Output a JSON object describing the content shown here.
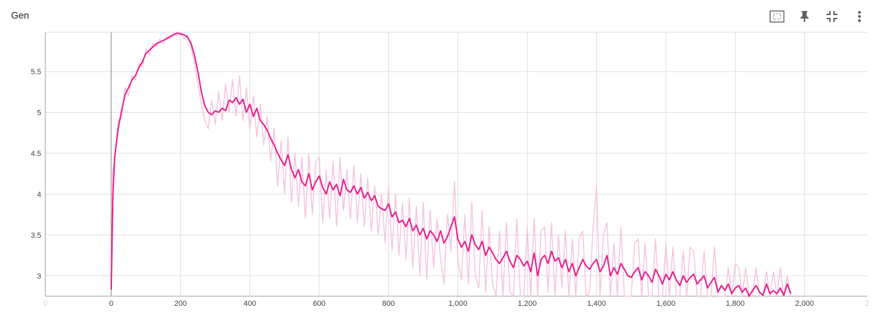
{
  "header": {
    "title": "Gen",
    "icons": [
      "fit-domain-icon",
      "pin-icon",
      "collapse-icon",
      "more-vert-icon"
    ]
  },
  "colors": {
    "smoothed": "#e91e8c",
    "raw": "#f5c2de",
    "grid": "#dedede",
    "axis": "#9e9e9e"
  },
  "chart_data": {
    "type": "line",
    "title": "Gen",
    "xlabel": "",
    "ylabel": "",
    "xlim": [
      -190,
      2180
    ],
    "ylim": [
      2.75,
      5.98
    ],
    "grid": true,
    "x_ticks": [
      "0",
      "0",
      "200",
      "400",
      "600",
      "800",
      "1,000",
      "1,200",
      "1,400",
      "1,600",
      "1,800",
      "2,000",
      "2"
    ],
    "x_tick_values": [
      -190,
      0,
      200,
      400,
      600,
      800,
      1000,
      1200,
      1400,
      1600,
      1800,
      2000,
      2180
    ],
    "y_ticks": [
      "3",
      "3.5",
      "4",
      "4.5",
      "5",
      "5.5"
    ],
    "y_tick_values": [
      3,
      3.5,
      4,
      4.5,
      5,
      5.5
    ],
    "series": [
      {
        "role": "smoothed",
        "x": [
          0,
          5,
          10,
          20,
          30,
          40,
          50,
          60,
          70,
          80,
          90,
          100,
          110,
          120,
          130,
          140,
          150,
          160,
          170,
          180,
          190,
          200,
          210,
          220,
          230,
          240,
          250,
          260,
          270,
          280,
          290,
          300,
          310,
          320,
          330,
          340,
          350,
          360,
          370,
          380,
          390,
          400,
          410,
          420,
          430,
          440,
          450,
          460,
          470,
          480,
          490,
          500,
          510,
          520,
          530,
          540,
          550,
          560,
          570,
          580,
          590,
          600,
          610,
          620,
          630,
          640,
          650,
          660,
          670,
          680,
          690,
          700,
          710,
          720,
          730,
          740,
          750,
          760,
          770,
          780,
          790,
          800,
          810,
          820,
          830,
          840,
          850,
          860,
          870,
          880,
          890,
          900,
          910,
          920,
          930,
          940,
          950,
          960,
          970,
          980,
          990,
          1000,
          1010,
          1020,
          1030,
          1040,
          1050,
          1060,
          1070,
          1080,
          1090,
          1100,
          1110,
          1120,
          1130,
          1140,
          1150,
          1160,
          1170,
          1180,
          1190,
          1200,
          1210,
          1220,
          1230,
          1240,
          1250,
          1260,
          1270,
          1280,
          1290,
          1300,
          1310,
          1320,
          1330,
          1340,
          1350,
          1360,
          1370,
          1380,
          1390,
          1400,
          1410,
          1420,
          1430,
          1440,
          1450,
          1460,
          1470,
          1480,
          1490,
          1500,
          1510,
          1520,
          1530,
          1540,
          1550,
          1560,
          1570,
          1580,
          1590,
          1600,
          1610,
          1620,
          1630,
          1640,
          1650,
          1660,
          1670,
          1680,
          1690,
          1700,
          1710,
          1720,
          1730,
          1740,
          1750,
          1760,
          1770,
          1780,
          1790,
          1800,
          1810,
          1820,
          1830,
          1840,
          1850,
          1860,
          1870,
          1880,
          1890,
          1900,
          1910,
          1920,
          1930,
          1940,
          1950,
          1960
        ],
        "y": [
          2.83,
          4.0,
          4.45,
          4.8,
          5.02,
          5.22,
          5.3,
          5.4,
          5.45,
          5.55,
          5.62,
          5.72,
          5.76,
          5.8,
          5.84,
          5.86,
          5.88,
          5.9,
          5.93,
          5.95,
          5.97,
          5.96,
          5.95,
          5.92,
          5.85,
          5.7,
          5.5,
          5.25,
          5.08,
          5.0,
          4.97,
          5.02,
          5.0,
          5.05,
          5.02,
          5.15,
          5.12,
          5.18,
          5.1,
          5.16,
          5.0,
          5.1,
          4.95,
          5.05,
          4.9,
          4.85,
          4.78,
          4.68,
          4.6,
          4.5,
          4.42,
          4.35,
          4.48,
          4.3,
          4.2,
          4.3,
          4.15,
          4.1,
          4.25,
          4.05,
          4.15,
          4.22,
          4.08,
          4.0,
          4.15,
          4.05,
          4.12,
          3.98,
          4.18,
          4.05,
          4.02,
          4.1,
          4.0,
          4.08,
          3.95,
          4.02,
          3.92,
          3.98,
          3.85,
          3.82,
          3.8,
          3.88,
          3.72,
          3.78,
          3.65,
          3.68,
          3.6,
          3.7,
          3.55,
          3.62,
          3.5,
          3.58,
          3.45,
          3.55,
          3.5,
          3.42,
          3.55,
          3.4,
          3.48,
          3.6,
          3.72,
          3.45,
          3.35,
          3.42,
          3.3,
          3.5,
          3.38,
          3.32,
          3.42,
          3.25,
          3.35,
          3.28,
          3.2,
          3.15,
          3.22,
          3.3,
          3.18,
          3.1,
          3.25,
          3.2,
          3.12,
          3.18,
          3.05,
          3.28,
          3.0,
          3.2,
          3.25,
          3.15,
          3.3,
          3.18,
          3.22,
          3.1,
          3.2,
          3.05,
          3.15,
          3.0,
          3.1,
          3.2,
          3.12,
          3.08,
          3.15,
          3.2,
          3.05,
          3.12,
          3.25,
          3.0,
          3.1,
          3.02,
          3.15,
          3.08,
          3.0,
          2.98,
          3.05,
          3.1,
          2.95,
          3.05,
          3.0,
          2.92,
          3.08,
          3.0,
          2.9,
          3.02,
          2.95,
          3.05,
          2.95,
          2.88,
          3.0,
          2.92,
          2.98,
          3.02,
          2.9,
          2.95,
          3.0,
          2.85,
          2.92,
          2.98,
          2.8,
          2.88,
          2.82,
          2.9,
          2.78,
          2.85,
          2.88,
          2.8,
          2.85,
          2.75,
          2.82,
          2.88,
          2.8,
          2.76,
          2.9,
          2.78,
          2.82,
          2.78,
          2.85,
          2.76,
          2.9,
          2.78
        ]
      },
      {
        "role": "raw",
        "x": [
          0,
          5,
          10,
          20,
          30,
          40,
          50,
          60,
          70,
          80,
          90,
          100,
          110,
          120,
          130,
          140,
          150,
          160,
          170,
          180,
          190,
          200,
          210,
          220,
          230,
          240,
          250,
          260,
          270,
          280,
          290,
          300,
          310,
          320,
          330,
          340,
          350,
          360,
          370,
          380,
          390,
          400,
          410,
          420,
          430,
          440,
          450,
          460,
          470,
          480,
          490,
          500,
          510,
          520,
          530,
          540,
          550,
          560,
          570,
          580,
          590,
          600,
          610,
          620,
          630,
          640,
          650,
          660,
          670,
          680,
          690,
          700,
          710,
          720,
          730,
          740,
          750,
          760,
          770,
          780,
          790,
          800,
          810,
          820,
          830,
          840,
          850,
          860,
          870,
          880,
          890,
          900,
          910,
          920,
          930,
          940,
          950,
          960,
          970,
          980,
          990,
          1000,
          1010,
          1020,
          1030,
          1040,
          1050,
          1060,
          1070,
          1080,
          1090,
          1100,
          1110,
          1120,
          1130,
          1140,
          1150,
          1160,
          1170,
          1180,
          1190,
          1200,
          1210,
          1220,
          1230,
          1240,
          1250,
          1260,
          1270,
          1280,
          1290,
          1300,
          1310,
          1320,
          1330,
          1340,
          1350,
          1360,
          1370,
          1380,
          1390,
          1400,
          1410,
          1420,
          1430,
          1440,
          1450,
          1460,
          1470,
          1480,
          1490,
          1500,
          1510,
          1520,
          1530,
          1540,
          1550,
          1560,
          1570,
          1580,
          1590,
          1600,
          1610,
          1620,
          1630,
          1640,
          1650,
          1660,
          1670,
          1680,
          1690,
          1700,
          1710,
          1720,
          1730,
          1740,
          1750,
          1760,
          1770,
          1780,
          1790,
          1800,
          1810,
          1820,
          1830,
          1840,
          1850,
          1860,
          1870,
          1880,
          1890,
          1900,
          1910,
          1920,
          1930,
          1940,
          1950,
          1960
        ],
        "y": [
          2.83,
          4.3,
          4.4,
          4.9,
          4.95,
          5.3,
          5.2,
          5.45,
          5.4,
          5.6,
          5.55,
          5.78,
          5.7,
          5.85,
          5.8,
          5.9,
          5.84,
          5.93,
          5.9,
          5.98,
          5.93,
          5.98,
          5.9,
          5.95,
          5.8,
          5.6,
          5.35,
          5.1,
          4.9,
          4.8,
          5.15,
          4.85,
          5.25,
          4.9,
          5.35,
          5.0,
          5.4,
          4.95,
          5.45,
          4.9,
          5.3,
          4.8,
          5.2,
          4.7,
          5.1,
          4.6,
          4.95,
          4.4,
          4.8,
          4.1,
          4.65,
          4.0,
          4.7,
          3.9,
          4.5,
          3.85,
          4.45,
          3.7,
          4.5,
          3.75,
          4.4,
          4.45,
          3.65,
          4.3,
          3.7,
          4.4,
          3.6,
          4.45,
          3.8,
          4.3,
          3.7,
          4.35,
          3.65,
          4.25,
          3.6,
          4.2,
          3.55,
          4.1,
          3.5,
          4.0,
          3.4,
          4.1,
          3.3,
          4.0,
          3.25,
          3.9,
          3.2,
          3.95,
          3.1,
          3.85,
          3.0,
          3.9,
          2.95,
          3.8,
          3.1,
          3.7,
          3.2,
          2.9,
          3.75,
          3.3,
          4.15,
          3.2,
          2.95,
          3.75,
          2.9,
          3.9,
          3.0,
          2.85,
          3.8,
          2.8,
          3.6,
          2.9,
          2.75,
          3.55,
          2.7,
          3.65,
          2.8,
          2.7,
          3.7,
          2.75,
          2.65,
          3.6,
          2.6,
          3.7,
          2.75,
          3.55,
          3.6,
          2.8,
          3.65,
          2.75,
          3.5,
          2.85,
          3.55,
          2.7,
          3.45,
          2.7,
          3.45,
          3.55,
          2.75,
          2.8,
          3.6,
          4.1,
          2.7,
          3.5,
          3.65,
          2.6,
          3.4,
          2.7,
          3.6,
          2.65,
          2.7,
          2.75,
          3.4,
          3.45,
          2.7,
          3.4,
          2.65,
          2.7,
          3.45,
          2.6,
          2.7,
          3.4,
          2.65,
          3.35,
          2.6,
          2.7,
          3.3,
          2.6,
          3.35,
          3.3,
          2.65,
          2.6,
          3.3,
          2.55,
          2.7,
          3.35,
          2.55,
          2.65,
          2.6,
          3.1,
          2.55,
          3.15,
          3.1,
          2.6,
          3.1,
          2.55,
          2.65,
          3.1,
          2.6,
          2.55,
          3.05,
          2.6,
          3.05,
          2.6,
          3.1,
          2.55,
          3.0,
          2.7
        ]
      }
    ]
  }
}
